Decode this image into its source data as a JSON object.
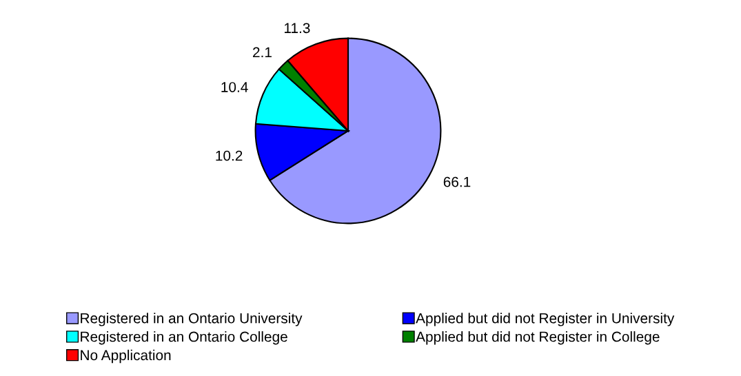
{
  "chart_data": {
    "type": "pie",
    "categories": [
      "Registered in an Ontario University",
      "Applied but did not Register in University",
      "Registered in an Ontario College",
      "Applied but did not Register in College",
      "No Application"
    ],
    "values": [
      66.1,
      10.2,
      10.4,
      2.1,
      11.3
    ],
    "colors": [
      "#9999ff",
      "#0000ff",
      "#00ffff",
      "#008000",
      "#ff0000"
    ],
    "data_labels": true,
    "legend": "bottom"
  }
}
